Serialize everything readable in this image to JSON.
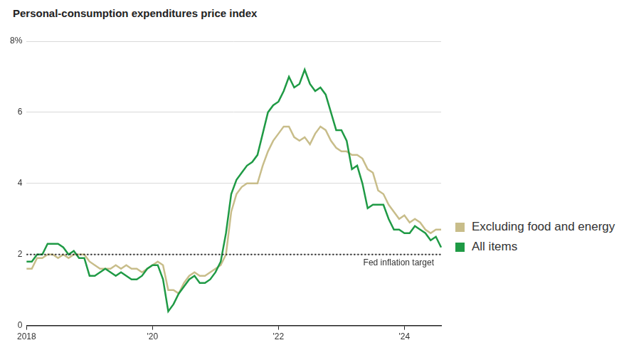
{
  "chart_data": {
    "type": "line",
    "title": "Personal-consumption expenditures price index",
    "categories": [
      "2018",
      null,
      null,
      null,
      null,
      null,
      null,
      null,
      null,
      null,
      null,
      null,
      null,
      null,
      null,
      null,
      null,
      null,
      null,
      null,
      null,
      null,
      null,
      null,
      "'20",
      null,
      null,
      null,
      null,
      null,
      null,
      null,
      null,
      null,
      null,
      null,
      null,
      null,
      null,
      null,
      null,
      null,
      null,
      null,
      null,
      null,
      null,
      null,
      "'22",
      null,
      null,
      null,
      null,
      null,
      null,
      null,
      null,
      null,
      null,
      null,
      null,
      null,
      null,
      null,
      null,
      null,
      null,
      null,
      null,
      null,
      null,
      null,
      "'24",
      null,
      null,
      null,
      null,
      null,
      null,
      null
    ],
    "series": [
      {
        "name": "Excluding food and energy",
        "color": "#c8bd8a",
        "values": [
          1.6,
          1.6,
          1.9,
          1.9,
          2.0,
          2.0,
          1.9,
          2.0,
          1.9,
          2.0,
          2.0,
          2.0,
          1.8,
          1.7,
          1.6,
          1.6,
          1.6,
          1.7,
          1.6,
          1.7,
          1.6,
          1.6,
          1.5,
          1.6,
          1.7,
          1.8,
          1.7,
          1.0,
          1.0,
          0.9,
          1.2,
          1.4,
          1.5,
          1.4,
          1.4,
          1.5,
          1.6,
          1.7,
          2.0,
          3.2,
          3.7,
          3.9,
          4.0,
          4.0,
          4.0,
          4.5,
          4.9,
          5.2,
          5.4,
          5.6,
          5.6,
          5.3,
          5.2,
          5.3,
          5.1,
          5.4,
          5.6,
          5.5,
          5.2,
          5.0,
          4.9,
          4.9,
          4.8,
          4.8,
          4.7,
          4.4,
          4.3,
          3.8,
          3.7,
          3.4,
          3.2,
          3.0,
          3.1,
          2.9,
          3.0,
          2.9,
          2.7,
          2.6,
          2.7,
          2.7
        ]
      },
      {
        "name": "All items",
        "color": "#1f9a45",
        "values": [
          1.8,
          1.8,
          2.0,
          2.0,
          2.3,
          2.3,
          2.3,
          2.2,
          2.0,
          2.1,
          1.9,
          1.9,
          1.4,
          1.4,
          1.5,
          1.6,
          1.5,
          1.4,
          1.5,
          1.4,
          1.3,
          1.3,
          1.4,
          1.6,
          1.7,
          1.7,
          1.3,
          0.4,
          0.6,
          0.9,
          1.1,
          1.3,
          1.4,
          1.2,
          1.2,
          1.3,
          1.5,
          1.8,
          2.6,
          3.7,
          4.1,
          4.3,
          4.5,
          4.6,
          4.8,
          5.4,
          6.0,
          6.2,
          6.3,
          6.6,
          7.0,
          6.7,
          6.8,
          7.2,
          6.8,
          6.6,
          6.7,
          6.5,
          6.0,
          5.5,
          5.5,
          5.2,
          4.4,
          4.5,
          4.0,
          3.3,
          3.4,
          3.4,
          3.4,
          3.0,
          2.7,
          2.7,
          2.6,
          2.6,
          2.8,
          2.7,
          2.6,
          2.4,
          2.5,
          2.2
        ]
      }
    ],
    "ylim": [
      0,
      8
    ],
    "yticks": [
      0,
      2,
      4,
      6,
      {
        "value": 8,
        "label": "8%"
      }
    ],
    "grid": true,
    "legend": "right",
    "reference_line": {
      "value": 2,
      "label": "Fed inflation target"
    }
  }
}
